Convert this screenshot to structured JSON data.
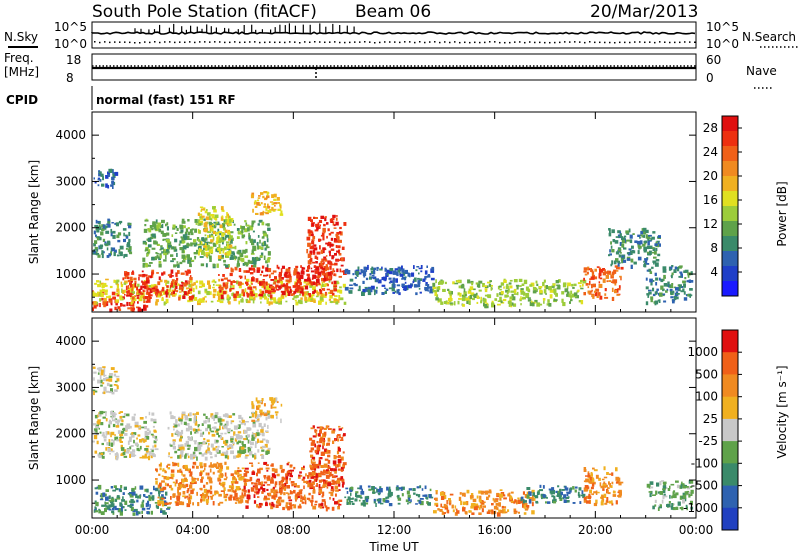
{
  "header": {
    "station": "South Pole Station (fitACF)",
    "beam": "Beam 06",
    "date": "20/Mar/2013"
  },
  "status_panels": {
    "nsky_label": "N.Sky",
    "nsky_ticks": [
      "10^5",
      "10^0"
    ],
    "nsearch_label": "N.Search",
    "nsearch_ticks": [
      "10^5",
      "10^0"
    ],
    "freq_label_1": "Freq.",
    "freq_label_2": "[MHz]",
    "freq_ticks": [
      "18",
      "8"
    ],
    "nave_label": "Nave",
    "nave_ticks": [
      "60",
      "0"
    ],
    "cpid_label": "CPID",
    "cpid_value": "normal (fast) 151 RF"
  },
  "chart_data": [
    {
      "type": "heatmap",
      "title": "",
      "quantity": "Power",
      "xlabel": "",
      "ylabel": "Slant Range [km]",
      "xlim": [
        "00:00",
        "24:00"
      ],
      "ylim": [
        180,
        4500
      ],
      "x_ticks": [
        "00:00",
        "04:00",
        "08:00",
        "12:00",
        "16:00",
        "20:00",
        "00:00"
      ],
      "y_ticks": [
        1000,
        2000,
        3000,
        4000
      ],
      "colorbar": {
        "label": "Power [dB]",
        "ticks": [
          "4",
          "8",
          "12",
          "16",
          "20",
          "24",
          "28"
        ],
        "range": [
          0,
          30
        ],
        "colors": [
          "#1a1aff",
          "#1f3fc8",
          "#2e62b0",
          "#3a8a6a",
          "#5fa24a",
          "#9ccc3a",
          "#e0e020",
          "#f0b020",
          "#f08a20",
          "#f06018",
          "#ee3010",
          "#e01010"
        ]
      },
      "regions": [
        {
          "t0": 0.0,
          "t1": 2.2,
          "r0": 250,
          "r1": 650,
          "level": 26
        },
        {
          "t0": 0.0,
          "t1": 10.0,
          "r0": 400,
          "r1": 900,
          "level": 17
        },
        {
          "t0": 1.2,
          "t1": 4.0,
          "r0": 500,
          "r1": 1100,
          "level": 28
        },
        {
          "t0": 5.0,
          "t1": 9.6,
          "r0": 550,
          "r1": 1200,
          "level": 27
        },
        {
          "t0": 8.5,
          "t1": 10.0,
          "r0": 900,
          "r1": 2300,
          "level": 27
        },
        {
          "t0": 0.0,
          "t1": 1.5,
          "r0": 1400,
          "r1": 2200,
          "level": 9
        },
        {
          "t0": 0.0,
          "t1": 1.0,
          "r0": 2900,
          "r1": 3300,
          "level": 5
        },
        {
          "t0": 2.0,
          "t1": 7.0,
          "r0": 1200,
          "r1": 2200,
          "level": 12
        },
        {
          "t0": 6.3,
          "t1": 7.5,
          "r0": 2300,
          "r1": 2800,
          "level": 18
        },
        {
          "t0": 4.2,
          "t1": 5.5,
          "r0": 1400,
          "r1": 2500,
          "level": 16
        },
        {
          "t0": 10.0,
          "t1": 13.5,
          "r0": 600,
          "r1": 1200,
          "level": 6
        },
        {
          "t0": 13.5,
          "t1": 19.5,
          "r0": 350,
          "r1": 900,
          "level": 14
        },
        {
          "t0": 19.5,
          "t1": 21.0,
          "r0": 500,
          "r1": 1200,
          "level": 24
        },
        {
          "t0": 20.5,
          "t1": 22.5,
          "r0": 1200,
          "r1": 2000,
          "level": 7
        },
        {
          "t0": 22.0,
          "t1": 23.8,
          "r0": 400,
          "r1": 1200,
          "level": 8
        }
      ]
    },
    {
      "type": "heatmap",
      "title": "",
      "quantity": "Velocity",
      "xlabel": "Time UT",
      "ylabel": "Slant Range [km]",
      "xlim": [
        "00:00",
        "24:00"
      ],
      "ylim": [
        180,
        4500
      ],
      "x_ticks": [
        "00:00",
        "04:00",
        "08:00",
        "12:00",
        "16:00",
        "20:00",
        "00:00"
      ],
      "y_ticks": [
        1000,
        2000,
        3000,
        4000
      ],
      "colorbar": {
        "label": "Velocity [m s⁻¹]",
        "ticks": [
          "1000",
          "500",
          "100",
          "25",
          "-25",
          "-100",
          "-500",
          "-1000"
        ],
        "colors": [
          "#2040c0",
          "#2e62b0",
          "#3a8a6a",
          "#5fa24a",
          "#c8c8c8",
          "#f0b020",
          "#f08a20",
          "#f06018",
          "#e01010"
        ]
      },
      "regions": [
        {
          "t0": 0.0,
          "t1": 3.0,
          "r0": 300,
          "r1": 900,
          "level": 2
        },
        {
          "t0": 0.0,
          "t1": 2.5,
          "r0": 1500,
          "r1": 2500,
          "level": 4
        },
        {
          "t0": 2.5,
          "t1": 6.0,
          "r0": 500,
          "r1": 1400,
          "level": 6
        },
        {
          "t0": 6.0,
          "t1": 9.8,
          "r0": 400,
          "r1": 1400,
          "level": 7
        },
        {
          "t0": 8.6,
          "t1": 10.0,
          "r0": 900,
          "r1": 2200,
          "level": 7
        },
        {
          "t0": 3.0,
          "t1": 7.0,
          "r0": 1500,
          "r1": 2500,
          "level": 4
        },
        {
          "t0": 6.3,
          "t1": 7.5,
          "r0": 2300,
          "r1": 2800,
          "level": 5
        },
        {
          "t0": 10.0,
          "t1": 13.5,
          "r0": 500,
          "r1": 900,
          "level": 2
        },
        {
          "t0": 13.5,
          "t1": 17.5,
          "r0": 300,
          "r1": 800,
          "level": 6
        },
        {
          "t0": 17.0,
          "t1": 19.5,
          "r0": 500,
          "r1": 900,
          "level": 2
        },
        {
          "t0": 19.5,
          "t1": 21.0,
          "r0": 500,
          "r1": 1300,
          "level": 6
        },
        {
          "t0": 22.0,
          "t1": 23.8,
          "r0": 400,
          "r1": 1000,
          "level": 3
        },
        {
          "t0": 0.0,
          "t1": 1.0,
          "r0": 2900,
          "r1": 3500,
          "level": 4
        }
      ]
    }
  ]
}
